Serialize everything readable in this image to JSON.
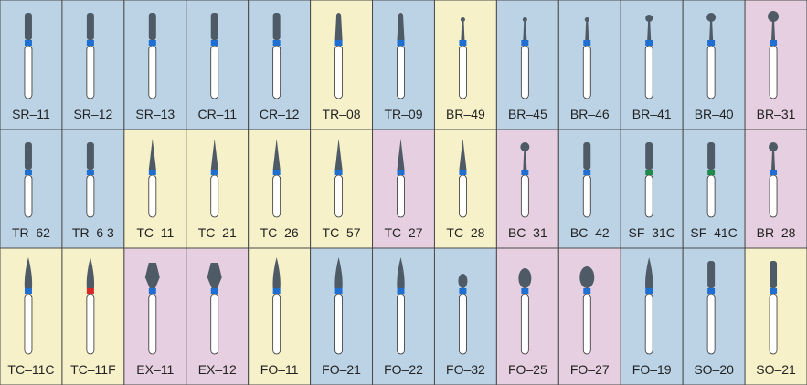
{
  "rows": [
    [
      "SR–11",
      "SR–12",
      "SR–13",
      "CR–11",
      "CR–12",
      "TR–08",
      "TR–09",
      "BR–49",
      "BR–45",
      "BR–46",
      "BR–41",
      "BR–40",
      "BR–31"
    ],
    [
      "TR–62",
      "TR–6 3",
      "TC–11",
      "TC–21",
      "TC–26",
      "TC–57",
      "TC–27",
      "TC–28",
      "BC–31",
      "BC–42",
      "SF–31C",
      "SF–41C",
      "BR–28"
    ],
    [
      "TC–11C",
      "TC–11F",
      "EX–11",
      "EX–12",
      "FO–11",
      "FO–21",
      "FO–22",
      "FO–32",
      "FO–25",
      "FO–27",
      "FO–19",
      "SO–20",
      "SO–21"
    ]
  ]
}
